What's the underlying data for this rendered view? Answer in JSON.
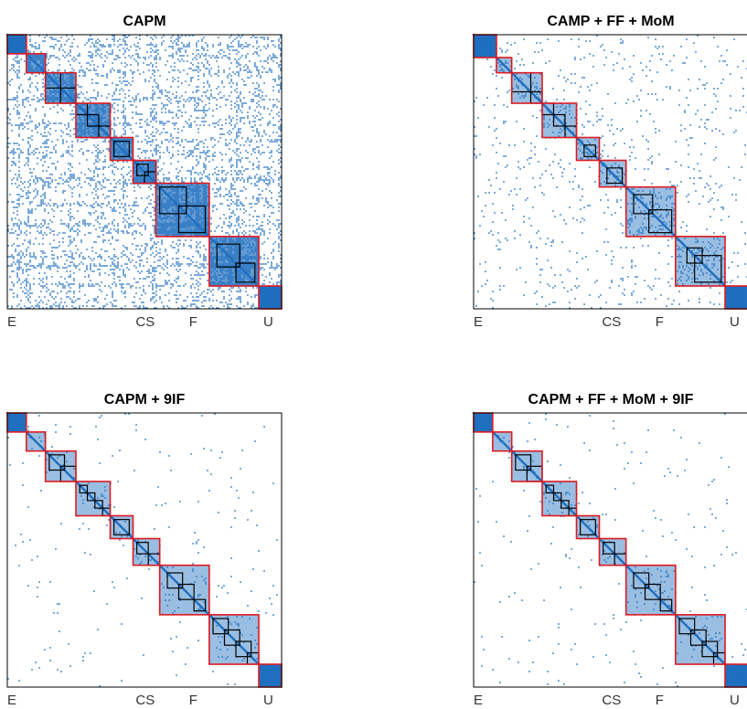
{
  "chart_data": [
    {
      "type": "scatter",
      "subtype": "sparse-matrix-spy",
      "title": "CAPM",
      "xticks": [
        "E",
        "CS",
        "F",
        "U"
      ],
      "colors": {
        "points": "#1f6fbf",
        "sector_box": "#e0191f",
        "cluster_box": "#000000",
        "frame": "#000000"
      },
      "density": "high",
      "sector_blocks": [
        [
          0,
          5
        ],
        [
          5,
          10
        ],
        [
          10,
          18
        ],
        [
          18,
          27
        ],
        [
          27,
          33
        ],
        [
          33,
          39
        ],
        [
          39,
          53
        ],
        [
          53,
          66
        ],
        [
          66,
          72
        ]
      ],
      "cluster_blocks": [
        [
          10,
          14
        ],
        [
          14,
          18
        ],
        [
          18,
          21
        ],
        [
          21,
          24
        ],
        [
          24,
          27
        ],
        [
          28,
          32
        ],
        [
          34,
          37
        ],
        [
          36,
          39
        ],
        [
          40,
          47
        ],
        [
          45,
          52
        ],
        [
          55,
          61
        ],
        [
          60,
          65
        ]
      ]
    },
    {
      "type": "scatter",
      "subtype": "sparse-matrix-spy",
      "title": "CAMP + FF + MoM",
      "xticks": [
        "E",
        "CS",
        "F",
        "U"
      ],
      "colors": {
        "points": "#1f6fbf",
        "sector_box": "#e0191f",
        "cluster_box": "#000000",
        "frame": "#000000"
      },
      "density": "medium",
      "sector_blocks": [
        [
          0,
          6
        ],
        [
          6,
          10
        ],
        [
          10,
          18
        ],
        [
          18,
          27
        ],
        [
          27,
          33
        ],
        [
          33,
          40
        ],
        [
          40,
          53
        ],
        [
          53,
          66
        ],
        [
          66,
          72
        ]
      ],
      "cluster_blocks": [
        [
          10,
          15
        ],
        [
          15,
          18
        ],
        [
          18,
          21
        ],
        [
          21,
          24
        ],
        [
          24,
          27
        ],
        [
          29,
          32
        ],
        [
          35,
          39
        ],
        [
          42,
          47
        ],
        [
          46,
          52
        ],
        [
          56,
          60
        ],
        [
          58,
          65
        ]
      ]
    },
    {
      "type": "scatter",
      "subtype": "sparse-matrix-spy",
      "title": "CAPM + 9IF",
      "xticks": [
        "E",
        "CS",
        "F",
        "U"
      ],
      "colors": {
        "points": "#1f6fbf",
        "sector_box": "#e0191f",
        "cluster_box": "#000000",
        "frame": "#000000"
      },
      "density": "low",
      "sector_blocks": [
        [
          0,
          5
        ],
        [
          5,
          10
        ],
        [
          10,
          18
        ],
        [
          18,
          27
        ],
        [
          27,
          33
        ],
        [
          33,
          40
        ],
        [
          40,
          53
        ],
        [
          53,
          66
        ],
        [
          66,
          72
        ]
      ],
      "cluster_blocks": [
        [
          11,
          15
        ],
        [
          14,
          18
        ],
        [
          19,
          21
        ],
        [
          21,
          23
        ],
        [
          23,
          25
        ],
        [
          25,
          27
        ],
        [
          28,
          32
        ],
        [
          34,
          37
        ],
        [
          37,
          40
        ],
        [
          42,
          46
        ],
        [
          45,
          49
        ],
        [
          49,
          52
        ],
        [
          54,
          58
        ],
        [
          57,
          61
        ],
        [
          60,
          64
        ],
        [
          63,
          66
        ]
      ]
    },
    {
      "type": "scatter",
      "subtype": "sparse-matrix-spy",
      "title": "CAPM + FF + MoM + 9IF",
      "xticks": [
        "E",
        "CS",
        "F",
        "U"
      ],
      "colors": {
        "points": "#1f6fbf",
        "sector_box": "#e0191f",
        "cluster_box": "#000000",
        "frame": "#000000"
      },
      "density": "low",
      "sector_blocks": [
        [
          0,
          5
        ],
        [
          5,
          10
        ],
        [
          10,
          18
        ],
        [
          18,
          27
        ],
        [
          27,
          33
        ],
        [
          33,
          40
        ],
        [
          40,
          53
        ],
        [
          53,
          66
        ],
        [
          66,
          72
        ]
      ],
      "cluster_blocks": [
        [
          11,
          15
        ],
        [
          14,
          18
        ],
        [
          19,
          21
        ],
        [
          21,
          23
        ],
        [
          23,
          25
        ],
        [
          25,
          27
        ],
        [
          28,
          32
        ],
        [
          34,
          37
        ],
        [
          37,
          40
        ],
        [
          42,
          46
        ],
        [
          45,
          49
        ],
        [
          49,
          52
        ],
        [
          54,
          58
        ],
        [
          57,
          61
        ],
        [
          60,
          64
        ],
        [
          63,
          66
        ]
      ]
    }
  ]
}
